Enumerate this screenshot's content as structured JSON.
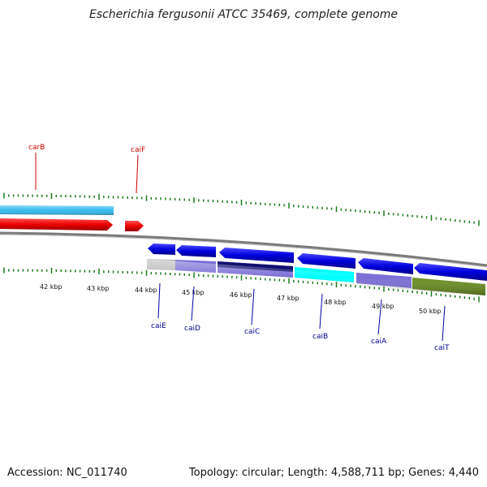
{
  "title": "Escherichia fergusonii ATCC 35469, complete genome",
  "footer": {
    "accession": "Accession: NC_011740",
    "summary": "Topology: circular; Length: 4,588,711 bp; Genes: 4,440"
  },
  "ticks": [
    {
      "label": "42 kbp"
    },
    {
      "label": "43 kbp"
    },
    {
      "label": "44 kbp"
    },
    {
      "label": "45 kbp"
    },
    {
      "label": "46 kbp"
    },
    {
      "label": "47 kbp"
    },
    {
      "label": "48 kbp"
    },
    {
      "label": "49 kbp"
    },
    {
      "label": "50 kbp"
    }
  ],
  "genes_top": [
    {
      "label": "carB",
      "color": "#ff0000"
    },
    {
      "label": "caiF",
      "color": "#ff0000"
    }
  ],
  "genes_bottom": [
    {
      "label": "caiE",
      "color": "#0000cc"
    },
    {
      "label": "caiD",
      "color": "#0000cc"
    },
    {
      "label": "caiC",
      "color": "#0000cc"
    },
    {
      "label": "caiB",
      "color": "#0000cc"
    },
    {
      "label": "caiA",
      "color": "#0000cc"
    },
    {
      "label": "caiT",
      "color": "#0000cc"
    }
  ],
  "colors": {
    "backbone": "#888888",
    "tick": "#1a7a1a",
    "forward_gene": "#ff0000",
    "reverse_gene": "#0000dd",
    "cog_blue": "#33bbee",
    "cog_gray": "#bbbbbb",
    "cog_slate": "#7b6fd6",
    "cog_navy": "#101070",
    "cog_cyan": "#00ffff",
    "cog_olive": "#6b8e23"
  }
}
